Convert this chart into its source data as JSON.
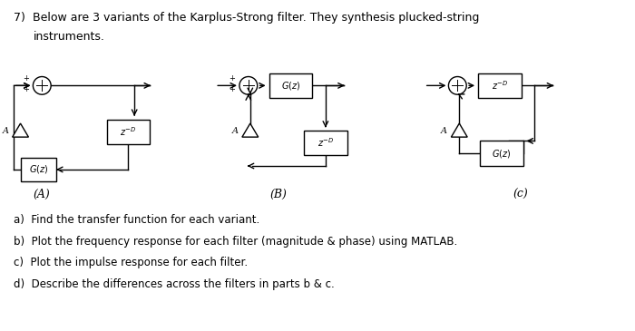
{
  "bg_color": "#ffffff",
  "text_color": "#000000",
  "title_num": "7)",
  "title_line1": "Below are 3 variants of the Karplus-Strong filter. They synthesis plucked-string",
  "title_line2": "instruments.",
  "bullet_a": "a)  Find the transfer function for each variant.",
  "bullet_b": "b)  Plot the frequency response for each filter (magnitude & phase) using MATLAB.",
  "bullet_c": "c)  Plot the impulse response for each filter.",
  "bullet_d": "d)  Describe the differences across the filters in parts b & c.",
  "label_A": "(A)",
  "label_B": "(B)",
  "label_C": "(c)"
}
